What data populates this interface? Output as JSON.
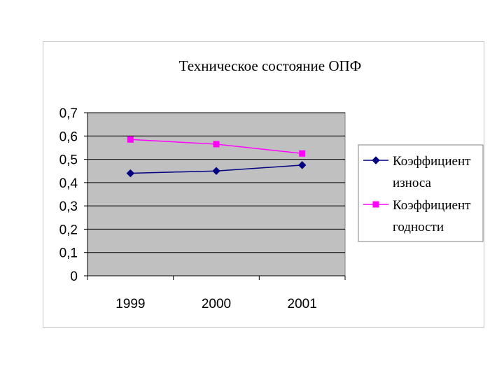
{
  "chart_data": {
    "type": "line",
    "title": "Техническое состояние ОПФ",
    "xlabel": "",
    "ylabel": "",
    "categories": [
      "1999",
      "2000",
      "2001"
    ],
    "ylim": [
      0,
      0.7
    ],
    "yticks": [
      "0",
      "0,1",
      "0,2",
      "0,3",
      "0,4",
      "0,5",
      "0,6",
      "0,7"
    ],
    "grid": true,
    "legend": "right",
    "series": [
      {
        "name": "Коэффициент износа",
        "legend_lines": [
          "Коэффициент",
          "износа"
        ],
        "values": [
          0.44,
          0.45,
          0.475
        ],
        "color": "#000080",
        "marker": "diamond"
      },
      {
        "name": "Коэффициент годности",
        "legend_lines": [
          "Коэффициент",
          "годности"
        ],
        "values": [
          0.585,
          0.565,
          0.525
        ],
        "color": "#ff00ff",
        "marker": "square"
      }
    ],
    "plot_background": "#c0c0c0",
    "gridline_color": "#000000"
  }
}
